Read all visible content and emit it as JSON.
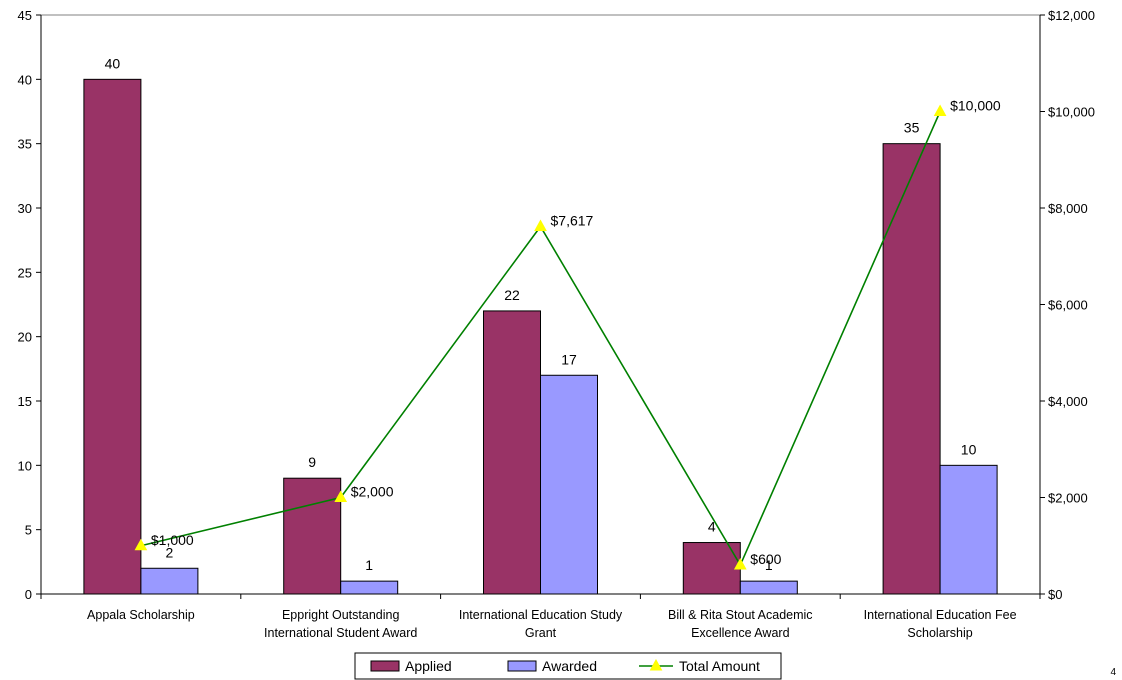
{
  "chart_data": {
    "type": "bar",
    "categories": [
      [
        "Appala Scholarship"
      ],
      [
        "Eppright Outstanding",
        "International Student Award"
      ],
      [
        "International Education Study",
        "Grant"
      ],
      [
        "Bill & Rita Stout Academic",
        "Excellence Award"
      ],
      [
        "International Education Fee",
        "Scholarship"
      ]
    ],
    "series": [
      {
        "name": "Applied",
        "kind": "bar",
        "axis": "left",
        "color": "#993366",
        "values": [
          40,
          9,
          22,
          4,
          35
        ],
        "labels": [
          "40",
          "9",
          "22",
          "4",
          "35"
        ]
      },
      {
        "name": "Awarded",
        "kind": "bar",
        "axis": "left",
        "color": "#9999FF",
        "values": [
          2,
          1,
          17,
          1,
          10
        ],
        "labels": [
          "2",
          "1",
          "17",
          "1",
          "10"
        ]
      },
      {
        "name": "Total Amount",
        "kind": "line",
        "axis": "right",
        "color": "#008000",
        "marker_color": "#FFFF00",
        "values": [
          1000,
          2000,
          7617,
          600,
          10000
        ],
        "labels": [
          "$1,000",
          "$2,000",
          "$7,617",
          "$600",
          "$10,000"
        ]
      }
    ],
    "y_left": {
      "min": 0,
      "max": 45,
      "step": 5,
      "ticks": [
        "0",
        "5",
        "10",
        "15",
        "20",
        "25",
        "30",
        "35",
        "40",
        "45"
      ]
    },
    "y_right": {
      "min": 0,
      "max": 12000,
      "step": 2000,
      "ticks": [
        "$0",
        "$2,000",
        "$4,000",
        "$6,000",
        "$8,000",
        "$10,000",
        "$12,000"
      ]
    },
    "grid": false,
    "legend": "bottom-center",
    "title": "",
    "xlabel": "",
    "ylabel": ""
  },
  "page_number": "4"
}
